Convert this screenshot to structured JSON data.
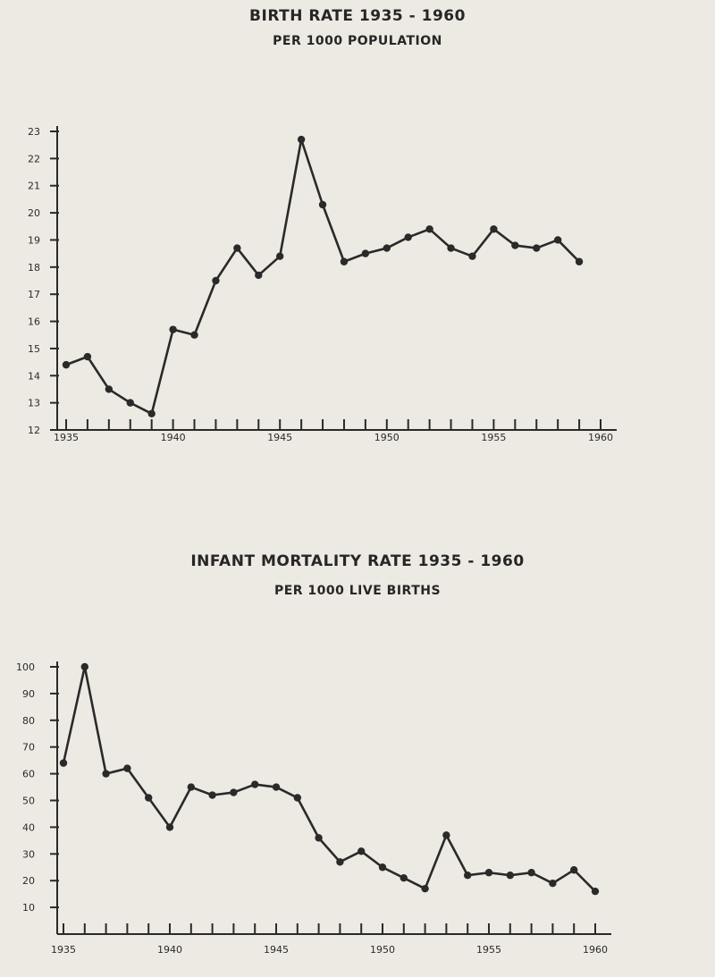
{
  "chart_data": [
    {
      "type": "line",
      "title": "BIRTH RATE 1935 - 1960",
      "subtitle": "PER 1000 POPULATION",
      "xlabel": "",
      "ylabel": "",
      "x": [
        1935,
        1936,
        1937,
        1938,
        1939,
        1940,
        1941,
        1942,
        1943,
        1944,
        1945,
        1946,
        1947,
        1948,
        1949,
        1950,
        1951,
        1952,
        1953,
        1954,
        1955,
        1956,
        1957,
        1958,
        1959,
        1960
      ],
      "series": [
        {
          "values": [
            14.4,
            14.7,
            13.5,
            13.0,
            12.6,
            15.7,
            15.5,
            17.5,
            18.7,
            17.7,
            18.4,
            22.7,
            20.3,
            18.2,
            18.5,
            18.7,
            19.1,
            19.4,
            18.7,
            18.4,
            19.4,
            18.8,
            18.7,
            19.0,
            18.2,
            null
          ]
        }
      ],
      "ylim": [
        12,
        23
      ],
      "yticks": [
        12,
        13,
        14,
        15,
        16,
        17,
        18,
        19,
        20,
        21,
        22,
        23
      ],
      "xtick_labels": [
        {
          "x": 1935,
          "label": "1935"
        },
        {
          "x": 1940,
          "label": "1940"
        },
        {
          "x": 1945,
          "label": "1945"
        },
        {
          "x": 1950,
          "label": "1950"
        },
        {
          "x": 1955,
          "label": "1955"
        },
        {
          "x": 1960,
          "label": "1960"
        }
      ],
      "grid": false,
      "legend": "none"
    },
    {
      "type": "line",
      "title": "INFANT MORTALITY RATE 1935 - 1960",
      "subtitle": "PER 1000 LIVE BIRTHS",
      "xlabel": "",
      "ylabel": "",
      "x": [
        1935,
        1936,
        1937,
        1938,
        1939,
        1940,
        1941,
        1942,
        1943,
        1944,
        1945,
        1946,
        1947,
        1948,
        1949,
        1950,
        1951,
        1952,
        1953,
        1954,
        1955,
        1956,
        1957,
        1958,
        1959,
        1960
      ],
      "series": [
        {
          "values": [
            64,
            100,
            60,
            62,
            51,
            40,
            55,
            52,
            53,
            56,
            55,
            51,
            36,
            27,
            31,
            25,
            21,
            17,
            37,
            22,
            23,
            22,
            23,
            19,
            24,
            16
          ]
        }
      ],
      "ylim": [
        0,
        100
      ],
      "yticks": [
        10,
        20,
        30,
        40,
        50,
        60,
        70,
        80,
        90,
        100
      ],
      "xtick_labels": [
        {
          "x": 1935,
          "label": "1935"
        },
        {
          "x": 1940,
          "label": "1940"
        },
        {
          "x": 1945,
          "label": "1945"
        },
        {
          "x": 1950,
          "label": "1950"
        },
        {
          "x": 1955,
          "label": "1955"
        },
        {
          "x": 1960,
          "label": "1960"
        }
      ],
      "grid": false,
      "legend": "none"
    }
  ]
}
